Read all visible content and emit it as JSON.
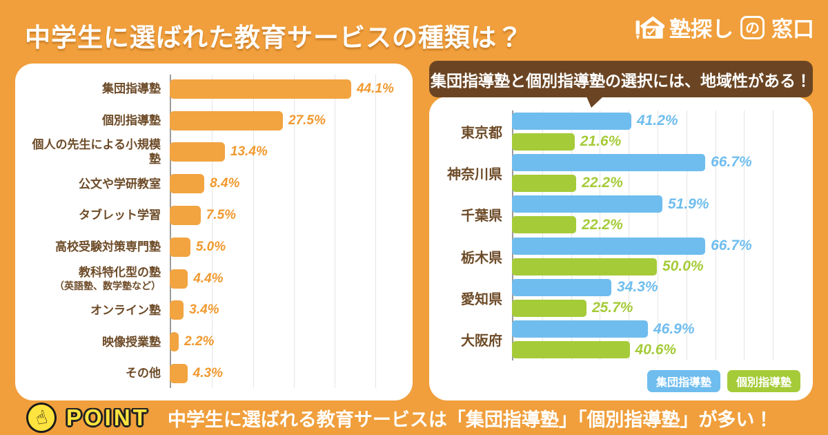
{
  "page": {
    "title": "中学生に選ばれた教育サービスの種類は？"
  },
  "logo": {
    "text": "塾探しの窓口",
    "part_before": "塾探し",
    "part_boxed": "の",
    "part_after": "窓口"
  },
  "point": {
    "label": "POINT",
    "message": "中学生に選ばれる教育サービスは「集団指導塾」「個別指導塾」が多い！"
  },
  "icons": {
    "logo_house": "house-pencil-icon",
    "point_hand": "☝"
  },
  "colors": {
    "background": "#F09F3C",
    "panel": "#FFFFFF",
    "bar-orange": "#F2A440",
    "brown": "#6D4B28",
    "bubble-brown": "#6B4523",
    "value-orange": "#F0992F",
    "blue": "#6FBDEE",
    "green": "#A5CB38",
    "grid": "#E4E4E4",
    "axis": "#9B9B9B",
    "point-yellow": "#FFE33E",
    "white": "#FFFFFF"
  },
  "chart_data": [
    {
      "type": "bar",
      "orientation": "horizontal",
      "title": "中学生に選ばれた教育サービスの種類は？",
      "unit": "%",
      "categories": [
        "集団指導塾",
        "個別指導塾",
        "個人の先生による小規模塾",
        "公文や学研教室",
        "タブレット学習",
        "高校受験対策専門塾",
        "教科特化型の塾（英語塾、数学塾など）",
        "オンライン塾",
        "映像授業塾",
        "その他"
      ],
      "values": [
        44.1,
        27.5,
        13.4,
        8.4,
        7.5,
        5.0,
        4.4,
        3.4,
        2.2,
        4.3
      ],
      "value_labels": [
        "44.1%",
        "27.5%",
        "13.4%",
        "8.4%",
        "7.5%",
        "5.0%",
        "4.4%",
        "3.4%",
        "2.2%",
        "4.3%"
      ],
      "bar_color": "#F2A440",
      "xlim": [
        0,
        55
      ],
      "gridlines_every": 10,
      "grid": true,
      "legend_position": "none"
    },
    {
      "type": "bar",
      "orientation": "horizontal",
      "title": "集団指導塾と個別指導塾の選択には、地域性がある！",
      "unit": "%",
      "categories": [
        "東京都",
        "神奈川県",
        "千葉県",
        "栃木県",
        "愛知県",
        "大阪府"
      ],
      "series": [
        {
          "name": "集団指導塾",
          "color": "#6FBDEE",
          "values": [
            41.2,
            66.7,
            51.9,
            66.7,
            34.3,
            46.9
          ],
          "value_labels": [
            "41.2%",
            "66.7%",
            "51.9%",
            "66.7%",
            "34.3%",
            "46.9%"
          ]
        },
        {
          "name": "個別指導塾",
          "color": "#A5CB38",
          "values": [
            21.6,
            22.2,
            22.2,
            50.0,
            25.7,
            40.6
          ],
          "value_labels": [
            "21.6%",
            "22.2%",
            "22.2%",
            "50.0%",
            "25.7%",
            "40.6%"
          ]
        }
      ],
      "xlim": [
        0,
        100
      ],
      "gridlines_every": 10,
      "grid": true,
      "legend_position": "bottom-right"
    }
  ]
}
